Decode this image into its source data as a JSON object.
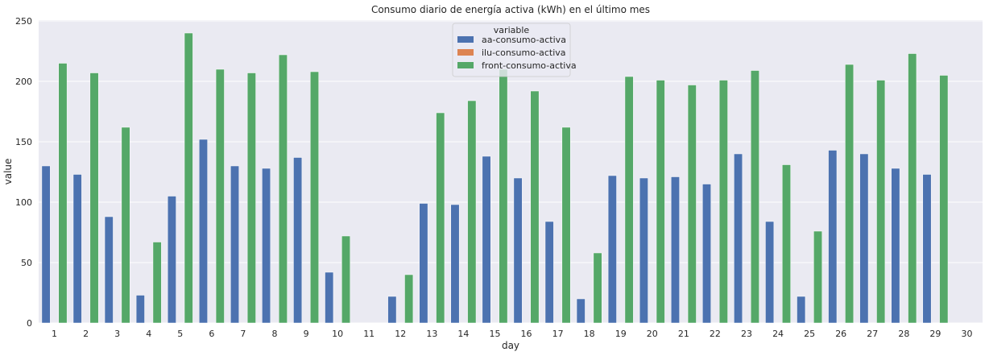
{
  "chart_data": {
    "type": "bar",
    "title": "Consumo diario de energía activa (kWh) en el último mes",
    "xlabel": "day",
    "ylabel": "value",
    "ylim": [
      0,
      250
    ],
    "yticks": [
      0,
      50,
      100,
      150,
      200,
      250
    ],
    "grid": true,
    "legend_placement": "top-center",
    "legend_title": "variable",
    "categories": [
      "1",
      "2",
      "3",
      "4",
      "5",
      "6",
      "7",
      "8",
      "9",
      "10",
      "11",
      "12",
      "13",
      "14",
      "15",
      "16",
      "17",
      "18",
      "19",
      "20",
      "21",
      "22",
      "23",
      "24",
      "25",
      "26",
      "27",
      "28",
      "29",
      "30"
    ],
    "series": [
      {
        "name": "aa-consumo-activa",
        "color": "#4c72b0",
        "values": [
          130,
          123,
          88,
          23,
          105,
          152,
          130,
          128,
          137,
          42,
          0,
          22,
          99,
          98,
          138,
          120,
          84,
          20,
          122,
          120,
          121,
          115,
          140,
          84,
          22,
          143,
          140,
          128,
          123,
          0
        ]
      },
      {
        "name": "ilu-consumo-activa",
        "color": "#dd8452",
        "values": [
          0,
          0,
          0,
          0,
          0,
          0,
          0,
          0,
          0,
          0,
          0,
          0,
          0,
          0,
          0,
          0,
          0,
          0,
          0,
          0,
          0,
          0,
          0,
          0,
          0,
          0,
          0,
          0,
          0,
          0
        ]
      },
      {
        "name": "front-consumo-activa",
        "color": "#55a868",
        "values": [
          215,
          207,
          162,
          67,
          240,
          210,
          207,
          222,
          208,
          72,
          0,
          40,
          174,
          184,
          210,
          192,
          162,
          58,
          204,
          201,
          197,
          201,
          209,
          131,
          76,
          214,
          201,
          223,
          205,
          0
        ]
      }
    ]
  }
}
